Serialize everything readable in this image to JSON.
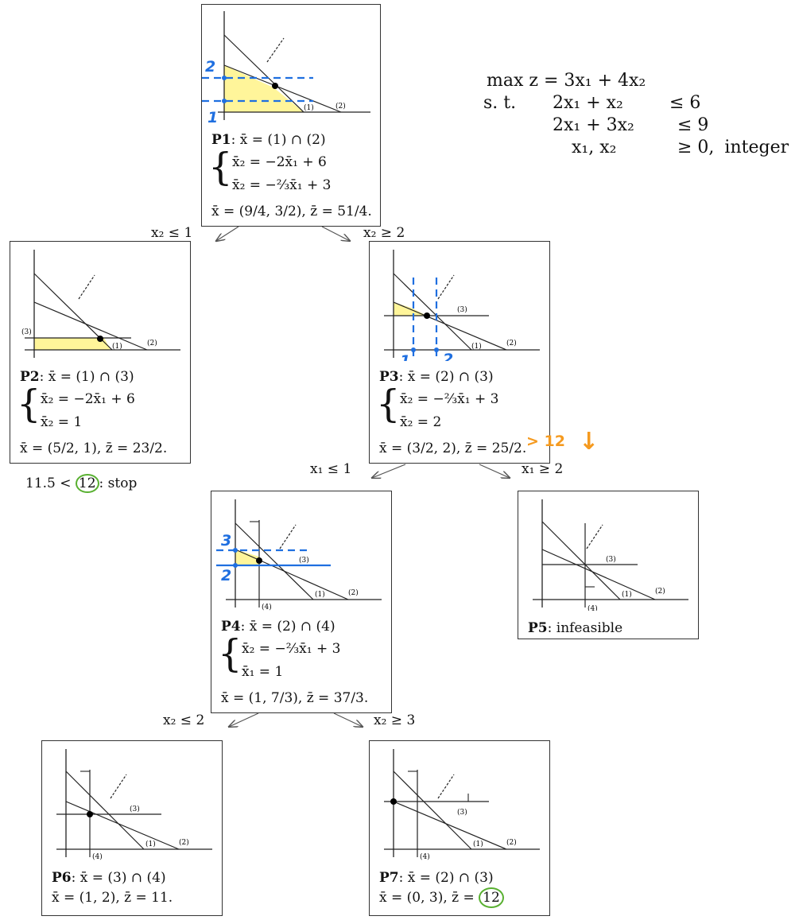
{
  "problem": {
    "objective": "max z = 3x₁ + 4x₂",
    "st_label": "s. t.",
    "c1_lhs": "2x₁ + x₂",
    "c1_rhs": "≤ 6",
    "c2_lhs": "2x₁ + 3x₂",
    "c2_rhs": "≤ 9",
    "c3_lhs": "x₁, x₂",
    "c3_rhs": "≥ 0,",
    "c3_extra": "integer"
  },
  "nodes": {
    "p1": {
      "name": "P1",
      "head": ": x̄ = (1) ∩ (2)",
      "sys1": "x̄₂   =   −2x̄₁ + 6",
      "sys2": "x̄₂   =   −⅔x̄₁ + 3",
      "sol": "x̄ = (9/4, 3/2), z̄ = 51/4."
    },
    "p2": {
      "name": "P2",
      "head": ": x̄ = (1) ∩ (3)",
      "sys1": "x̄₂   =   −2x̄₁ + 6",
      "sys2": "x̄₂   =   1",
      "sol": "x̄ = (5/2, 1), z̄ = 23/2."
    },
    "p3": {
      "name": "P3",
      "head": ": x̄ = (2) ∩ (3)",
      "sys1": "x̄₂   =   −⅔x̄₁ + 3",
      "sys2": "x̄₂   =   2",
      "sol": "x̄ = (3/2, 2), z̄ = 25/2."
    },
    "p4": {
      "name": "P4",
      "head": ": x̄ = (2) ∩ (4)",
      "sys1": "x̄₂   =   −⅔x̄₁ + 3",
      "sys2": "x̄₁   =   1",
      "sol": "x̄ = (1, 7/3), z̄ = 37/3."
    },
    "p5": {
      "name": "P5",
      "head": ": infeasible"
    },
    "p6": {
      "name": "P6",
      "head": ": x̄ = (3) ∩ (4)",
      "sol": "x̄ = (1, 2), z̄ = 11."
    },
    "p7": {
      "name": "P7",
      "head": ": x̄ = (2) ∩ (3)",
      "sol_prefix": "x̄ = (0, 3), z̄ = ",
      "sol_value": "12"
    }
  },
  "edges": {
    "p1_p2": "x₂ ≤ 1",
    "p1_p3": "x₂ ≥ 2",
    "p3_p4": "x₁ ≤ 1",
    "p3_p5": "x₁ ≥ 2",
    "p4_p6": "x₂ ≤ 2",
    "p4_p7": "x₂ ≥ 3"
  },
  "p2_note": {
    "prefix": "11.5 < ",
    "value": "12",
    "suffix": ": stop"
  },
  "line_labels": {
    "l1": "(1)",
    "l2": "(2)",
    "l3": "(3)",
    "l4": "(4)"
  },
  "annotations": {
    "p1_level_top": "2",
    "p1_level_bottom": "1",
    "p3_col_left": "1",
    "p3_col_right": "2",
    "p4_level_top": "3",
    "p4_level_bottom": "2",
    "p3_bound": "> 12",
    "p3_arrow": "↓"
  },
  "colors": {
    "feasible_fill": "#fff59a",
    "annotation_blue": "#1f6fe0",
    "annotation_orange": "#f59a1f",
    "highlight_green": "#59b031"
  }
}
